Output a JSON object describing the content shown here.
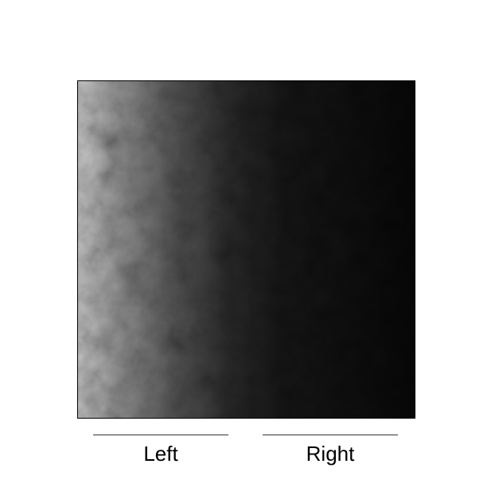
{
  "regions": {
    "left_label": "Left",
    "right_label": "Right"
  },
  "texture": {
    "description_type": "grayscale noise gradient",
    "bright_color": "#d8d8d8",
    "dark_color": "#000000"
  }
}
